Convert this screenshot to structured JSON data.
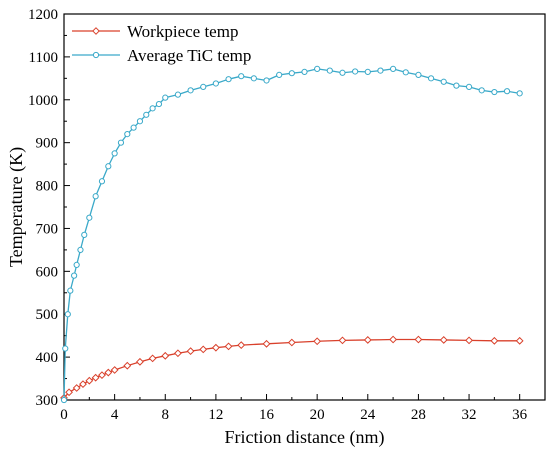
{
  "chart_data": {
    "type": "line",
    "xlabel": "Friction distance (nm)",
    "ylabel": "Temperature (K)",
    "xlim": [
      0,
      38
    ],
    "ylim": [
      300,
      1200
    ],
    "xticks": [
      0,
      4,
      8,
      12,
      16,
      20,
      24,
      28,
      32,
      36
    ],
    "yticks": [
      300,
      400,
      500,
      600,
      700,
      800,
      900,
      1000,
      1100,
      1200
    ],
    "legend_position": "top-left",
    "grid": false,
    "series": [
      {
        "name": "Workpiece temp",
        "color": "#d9402b",
        "marker": "diamond",
        "x": [
          0.0,
          0.4,
          1.0,
          1.5,
          2.0,
          2.5,
          3.0,
          3.5,
          4.0,
          5.0,
          6.0,
          7.0,
          8.0,
          9.0,
          10.0,
          11.0,
          12.0,
          13.0,
          14.0,
          16.0,
          18.0,
          20.0,
          22.0,
          24.0,
          26.0,
          28.0,
          30.0,
          32.0,
          34.0,
          36.0
        ],
        "y": [
          305,
          318,
          328,
          337,
          345,
          352,
          358,
          364,
          370,
          380,
          389,
          397,
          403,
          409,
          414,
          418,
          422,
          425,
          428,
          431,
          434,
          437,
          439,
          440,
          441,
          441,
          440,
          439,
          438,
          438
        ]
      },
      {
        "name": "Average TiC temp",
        "color": "#3aa9c9",
        "marker": "circle",
        "x": [
          0.0,
          0.1,
          0.3,
          0.5,
          0.8,
          1.0,
          1.3,
          1.6,
          2.0,
          2.5,
          3.0,
          3.5,
          4.0,
          4.5,
          5.0,
          5.5,
          6.0,
          6.5,
          7.0,
          7.5,
          8.0,
          9.0,
          10.0,
          11.0,
          12.0,
          13.0,
          14.0,
          15.0,
          16.0,
          17.0,
          18.0,
          19.0,
          20.0,
          21.0,
          22.0,
          23.0,
          24.0,
          25.0,
          26.0,
          27.0,
          28.0,
          29.0,
          30.0,
          31.0,
          32.0,
          33.0,
          34.0,
          35.0,
          36.0
        ],
        "y": [
          300,
          420,
          500,
          555,
          590,
          615,
          650,
          685,
          725,
          775,
          810,
          845,
          875,
          900,
          920,
          935,
          950,
          965,
          980,
          990,
          1005,
          1012,
          1022,
          1030,
          1038,
          1048,
          1055,
          1050,
          1045,
          1058,
          1062,
          1065,
          1072,
          1068,
          1063,
          1066,
          1065,
          1068,
          1072,
          1064,
          1058,
          1050,
          1042,
          1033,
          1030,
          1022,
          1018,
          1020,
          1015
        ]
      }
    ]
  }
}
